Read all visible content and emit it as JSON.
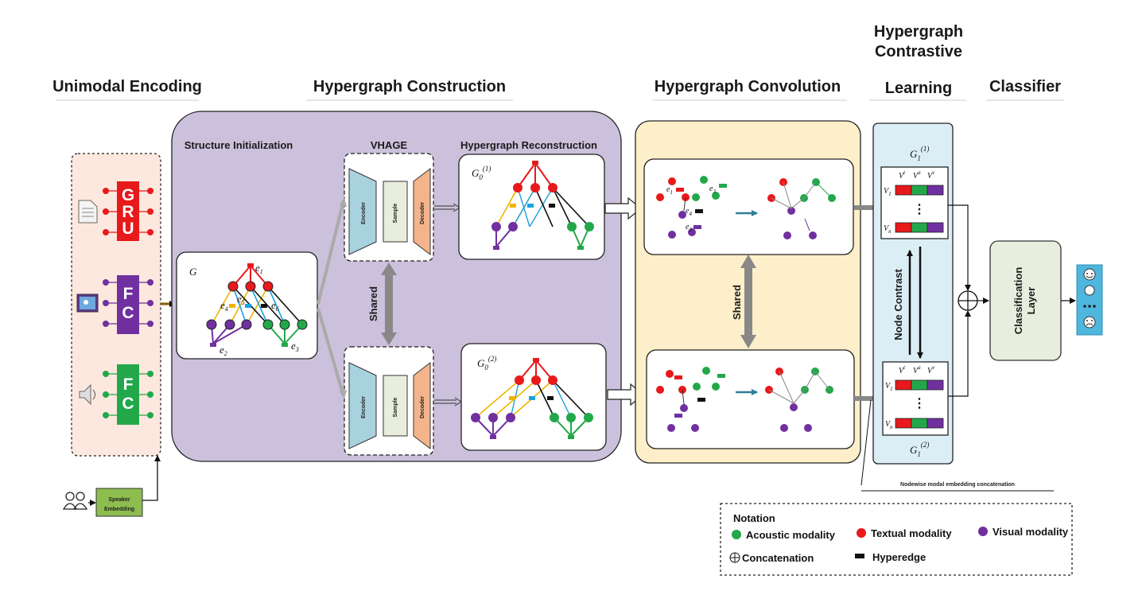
{
  "headers": {
    "unimodal": "Unimodal Encoding",
    "construction": "Hypergraph Construction",
    "convolution": "Hypergraph Convolution",
    "contrastive_l1": "Hypergraph",
    "contrastive_l2": "Contrastive",
    "contrastive_l3": "Learning",
    "classifier": "Classifier"
  },
  "encoders": {
    "text": "GRU",
    "visual": "FC",
    "audio": "FC"
  },
  "speaker_l1": "Speaker",
  "speaker_l2": "Embedding",
  "construction": {
    "structure_init": "Structure Initialization",
    "vhage": "VHAGE",
    "reconstruction": "Hypergraph Reconstruction",
    "graph_g": "G",
    "encoder": "Encoder",
    "sample": "Sample",
    "decoder": "Decoder",
    "shared": "Shared",
    "g01": "G",
    "g02": "G",
    "g0_sub": "0",
    "g01_sup": "(1)",
    "g02_sup": "(2)"
  },
  "convolution": {
    "shared": "Shared"
  },
  "contrastive": {
    "g1": "G",
    "g1_sub": "1",
    "g11_sup": "(1)",
    "g12_sup": "(2)",
    "node_contrast": "Node Contrast",
    "col_t": "V",
    "col_a": "V",
    "col_v": "V",
    "row_1": "V",
    "row_n": "V",
    "ellipsis": "⋮"
  },
  "classifier": {
    "layer_l1": "Classification",
    "layer_l2": "Layer"
  },
  "concat_label": "Nodewise modal embedding concatenation",
  "notation": {
    "title": "Notation",
    "acoustic": "Acoustic modality",
    "textual": "Textual modality",
    "visual": "Visual modality",
    "concatenation": "Concatenation",
    "hyperedge": "Hyperedge"
  },
  "colors": {
    "textual": "#e8191b",
    "acoustic": "#22a84a",
    "visual": "#7030a0",
    "construction_bg": "#ccc1dc",
    "convolution_bg": "#fdefc9",
    "contrastive_bg": "#dbeef6",
    "classifier_bg": "#e8eedd",
    "speaker": "#8ebd4f",
    "encoder_blue": "#a9d2df",
    "decoder_orange": "#f3b48b"
  }
}
